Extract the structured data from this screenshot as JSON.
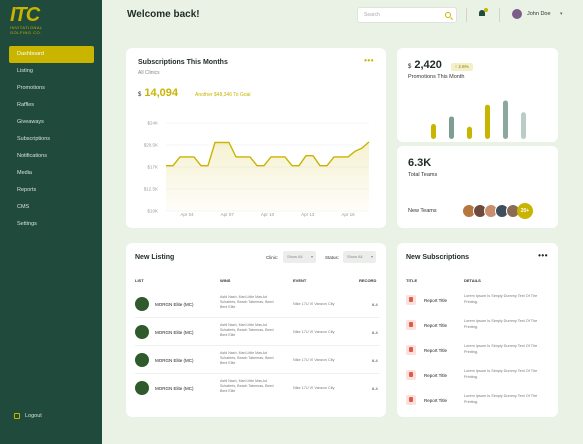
{
  "brand": {
    "logo_big": "ITC",
    "logo_small": "INVITATIONAL GOLFING CO."
  },
  "sidebar": {
    "items": [
      {
        "label": "Dashboard",
        "active": true
      },
      {
        "label": "Listing"
      },
      {
        "label": "Promotions"
      },
      {
        "label": "Raffles"
      },
      {
        "label": "Giveaways"
      },
      {
        "label": "Subscriptions"
      },
      {
        "label": "Notifications"
      },
      {
        "label": "Media"
      },
      {
        "label": "Reports"
      },
      {
        "label": "CMS"
      },
      {
        "label": "Settings"
      }
    ],
    "logout": "Logout"
  },
  "header": {
    "title": "Welcome back!",
    "search_placeholder": "Search",
    "user_name": "John Doe"
  },
  "subscriptions": {
    "title": "Subscriptions This Months",
    "subtitle": "All Clinics",
    "currency": "$",
    "value": "14,094",
    "goal": "Another $48,346 To Goal"
  },
  "chart_data": {
    "type": "area",
    "title": "Subscriptions This Months",
    "y_ticks": [
      "$24K",
      "$20.5K",
      "$17K",
      "$12.5K",
      "$10K"
    ],
    "x_ticks": [
      "Apr 04",
      "Apr 07",
      "Apr 10",
      "Apr 13",
      "Apr 16"
    ],
    "ylim": [
      10,
      24
    ],
    "x": [
      0,
      0.5,
      1,
      1.5,
      2,
      2.5,
      3,
      3.5,
      4,
      4.5,
      5,
      5.5,
      6,
      6.5,
      7,
      7.5,
      8,
      8.5,
      9,
      9.5,
      10,
      10.5,
      11,
      11.5,
      12,
      12.5,
      13,
      13.5,
      14,
      14.5
    ],
    "values": [
      17.2,
      17.2,
      18.6,
      18.6,
      18.6,
      17.2,
      17.2,
      20.9,
      20.9,
      20.9,
      18.6,
      18.6,
      18.6,
      17.2,
      17.2,
      18.6,
      18.6,
      18.6,
      17.2,
      17.2,
      18.8,
      18.8,
      17.2,
      17.2,
      18.6,
      18.6,
      18.6,
      19.5,
      20.0,
      21.0
    ],
    "color": "#c9b400",
    "grid": true
  },
  "promotions": {
    "currency": "$",
    "value": "2,420",
    "badge": "↑ 2.6%",
    "label": "Promotions This Month",
    "bars": [
      {
        "value": 0.32,
        "color": "#c9b400"
      },
      {
        "value": 0.48,
        "color": "#7f9e92"
      },
      {
        "value": 0.26,
        "color": "#c9b400"
      },
      {
        "value": 0.73,
        "color": "#c9b400"
      },
      {
        "value": 0.82,
        "color": "#8aa89c"
      },
      {
        "value": 0.57,
        "color": "#b8cdc3"
      }
    ]
  },
  "teams": {
    "value": "6.3K",
    "label": "Total Teams",
    "new_label": "New Teams",
    "more": "20+",
    "avatar_colors": [
      "#b5763f",
      "#6d4b3c",
      "#c98f6d",
      "#3d4f5c",
      "#8c6a54"
    ]
  },
  "listing": {
    "title": "New Listing",
    "clinic_label": "Clinic:",
    "clinic_value": "Show All",
    "status_label": "Status:",
    "status_value": "Show All",
    "columns": [
      "LIST",
      "WINS",
      "EVENT",
      "RECORD"
    ],
    "rows": [
      {
        "name": "MORGN Elite (MC)",
        "wins": "Asfd Nash, Mari Little Mas-kd Schaferts, Beach Tabernas, Beed Bent Elite",
        "event": "Nike 17U VI Vanzon City",
        "record": "6-4"
      },
      {
        "name": "MORGN Elite (MC)",
        "wins": "Asfd Nash, Mari Little Mas-kd Schaferts, Beach Tabernas, Beed Bent Elite",
        "event": "Nike 17U VI Vanzon City",
        "record": "6-4"
      },
      {
        "name": "MORGN Elite (MC)",
        "wins": "Asfd Nash, Mari Little Mas-kd Schaferts, Beach Tabernas, Beed Bent Elite",
        "event": "Nike 17U VI Vanzon City",
        "record": "6-4"
      },
      {
        "name": "MORGN Elite (MC)",
        "wins": "Asfd Nash, Mari Little Mas-kd Schaferts, Beach Tabernas, Beed Bent Elite",
        "event": "Nike 17U VI Vanzon City",
        "record": "6-4"
      }
    ]
  },
  "new_subscriptions": {
    "title": "New Subscriptions",
    "columns": [
      "TITLE",
      "DETAILS"
    ],
    "rows": [
      {
        "title": "Report Title",
        "detail": "Lorem Ipsum Is Simply Dummy Text Of The Printing."
      },
      {
        "title": "Report Title",
        "detail": "Lorem Ipsum Is Simply Dummy Text Of The Printing."
      },
      {
        "title": "Report Title",
        "detail": "Lorem Ipsum Is Simply Dummy Text Of The Printing."
      },
      {
        "title": "Report Title",
        "detail": "Lorem Ipsum Is Simply Dummy Text Of The Printing."
      },
      {
        "title": "Report Title",
        "detail": "Lorem Ipsum Is Simply Dummy Text Of The Printing."
      }
    ]
  }
}
